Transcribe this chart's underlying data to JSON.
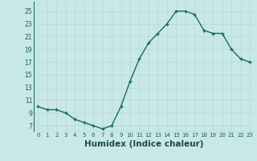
{
  "x": [
    0,
    1,
    2,
    3,
    4,
    5,
    6,
    7,
    8,
    9,
    10,
    11,
    12,
    13,
    14,
    15,
    16,
    17,
    18,
    19,
    20,
    21,
    22,
    23
  ],
  "y": [
    10,
    9.5,
    9.5,
    9,
    8,
    7.5,
    7,
    6.5,
    7,
    10,
    14,
    17.5,
    20,
    21.5,
    23,
    25,
    25,
    24.5,
    22,
    21.5,
    21.5,
    19,
    17.5,
    17
  ],
  "line_color": "#1a6b5a",
  "marker": "+",
  "bg_color": "#c8e8e8",
  "grid_color": "#b8d8d0",
  "xlabel": "Humidex (Indice chaleur)",
  "xlabel_fontsize": 7.5,
  "ytick_labels": [
    "7",
    "9",
    "11",
    "13",
    "15",
    "17",
    "19",
    "21",
    "23",
    "25"
  ],
  "ytick_vals": [
    7,
    9,
    11,
    13,
    15,
    17,
    19,
    21,
    23,
    25
  ],
  "xticks": [
    0,
    1,
    2,
    3,
    4,
    5,
    6,
    7,
    8,
    9,
    10,
    11,
    12,
    13,
    14,
    15,
    16,
    17,
    18,
    19,
    20,
    21,
    22,
    23
  ],
  "ylim": [
    6.0,
    26.5
  ],
  "xlim": [
    -0.5,
    23.5
  ]
}
